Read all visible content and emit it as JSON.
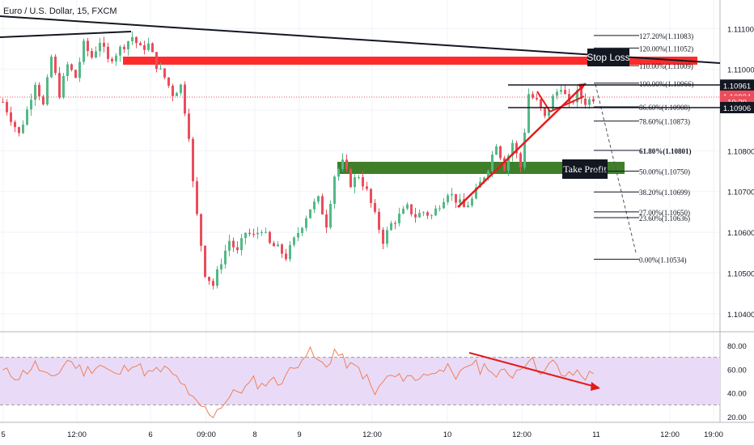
{
  "header": {
    "symbol_title": "Euro / U.S. Dollar, 15, FXCM"
  },
  "colors": {
    "up": "#53b987",
    "down": "#eb4d5c",
    "rsi_line": "#f07f5a",
    "rsi_band": "#e9dbf7",
    "stop_zone": "#ff2b2b",
    "profit_zone": "#3f7f2a",
    "trend_red": "#e31b1b",
    "black": "#131722"
  },
  "price_axis": {
    "ticks": [
      "1.11100",
      "1.11000",
      "1.10900",
      "1.10800",
      "1.10700",
      "1.10600",
      "1.10500",
      "1.10400"
    ],
    "tick_values": [
      1.111,
      1.11,
      1.109,
      1.108,
      1.107,
      1.106,
      1.105,
      1.104
    ],
    "badges": [
      {
        "text": "1.10961",
        "value": 1.10961,
        "bg": "#131722",
        "fg": "#ffffff"
      },
      {
        "text": "1.10934",
        "value": 1.10934,
        "bg": "#eb4d5c",
        "fg": "#ffffff"
      },
      {
        "text": "10:20",
        "value": 1.10921,
        "bg": "#eb4d5c",
        "fg": "#ffffff"
      },
      {
        "text": "1.10906",
        "value": 1.10906,
        "bg": "#131722",
        "fg": "#ffffff"
      }
    ]
  },
  "rsi_axis": {
    "ticks": [
      "80.00",
      "60.00",
      "40.00",
      "20.00"
    ],
    "tick_values": [
      80,
      60,
      40,
      20
    ],
    "band_upper": 70,
    "band_lower": 30
  },
  "time_axis": {
    "labels": [
      "5",
      "12:00",
      "6",
      "09:00",
      "8",
      "9",
      "12:00",
      "10",
      "12:00",
      "11",
      "12:00",
      "19:00"
    ]
  },
  "fib_levels": [
    {
      "text": "127.20%(1.11083)",
      "value": 1.11083,
      "bold": false
    },
    {
      "text": "120.00%(1.11052)",
      "value": 1.11052,
      "bold": false
    },
    {
      "text": "110.00%(1.11009)",
      "value": 1.11009,
      "bold": false
    },
    {
      "text": "100.00%(1.10966)",
      "value": 1.10966,
      "bold": false
    },
    {
      "text": "86.60%(1.10908)",
      "value": 1.10908,
      "bold": false
    },
    {
      "text": "78.60%(1.10873)",
      "value": 1.10873,
      "bold": false
    },
    {
      "text": "61.80%(1.10801)",
      "value": 1.10801,
      "bold": true
    },
    {
      "text": "50.00%(1.10750)",
      "value": 1.1075,
      "bold": false
    },
    {
      "text": "38.20%(1.10699)",
      "value": 1.10699,
      "bold": false
    },
    {
      "text": "27.00%(1.10650)",
      "value": 1.1065,
      "bold": false
    },
    {
      "text": "23.60%(1.10636)",
      "value": 1.10636,
      "bold": false
    },
    {
      "text": "0.00%(1.10534)",
      "value": 1.10534,
      "bold": false
    }
  ],
  "labels": {
    "stop_loss": "Stop Loss",
    "take_profit": "Take Profit"
  },
  "chart_data": {
    "type": "candlestick",
    "title": "Euro / U.S. Dollar, 15, FXCM",
    "xlabel": "",
    "ylabel": "",
    "ylim": [
      1.1036,
      1.1117
    ],
    "price_path": [
      [
        0,
        1.1092
      ],
      [
        2,
        1.1088
      ],
      [
        4,
        1.1084
      ],
      [
        6,
        1.109
      ],
      [
        8,
        1.1097
      ],
      [
        10,
        1.1091
      ],
      [
        12,
        1.1103
      ],
      [
        14,
        1.1094
      ],
      [
        16,
        1.1101
      ],
      [
        18,
        1.1098
      ],
      [
        20,
        1.1106
      ],
      [
        22,
        1.1103
      ],
      [
        24,
        1.1107
      ],
      [
        26,
        1.1102
      ],
      [
        28,
        1.1104
      ],
      [
        30,
        1.1106
      ],
      [
        32,
        1.1108
      ],
      [
        34,
        1.1105
      ],
      [
        36,
        1.1106
      ],
      [
        38,
        1.1101
      ],
      [
        40,
        1.1098
      ],
      [
        42,
        1.1094
      ],
      [
        44,
        1.1096
      ],
      [
        46,
        1.1084
      ],
      [
        47,
        1.1072
      ],
      [
        48,
        1.1064
      ],
      [
        50,
        1.105
      ],
      [
        52,
        1.1047
      ],
      [
        54,
        1.1053
      ],
      [
        56,
        1.1058
      ],
      [
        58,
        1.1055
      ],
      [
        60,
        1.106
      ],
      [
        62,
        1.1059
      ],
      [
        64,
        1.1061
      ],
      [
        66,
        1.1057
      ],
      [
        68,
        1.1056
      ],
      [
        70,
        1.1054
      ],
      [
        72,
        1.1058
      ],
      [
        74,
        1.1062
      ],
      [
        76,
        1.1066
      ],
      [
        78,
        1.1068
      ],
      [
        80,
        1.1062
      ],
      [
        82,
        1.1074
      ],
      [
        84,
        1.1077
      ],
      [
        86,
        1.1072
      ],
      [
        88,
        1.1074
      ],
      [
        90,
        1.107
      ],
      [
        92,
        1.1064
      ],
      [
        94,
        1.1058
      ],
      [
        96,
        1.1062
      ],
      [
        98,
        1.1064
      ],
      [
        100,
        1.1066
      ],
      [
        102,
        1.1064
      ],
      [
        104,
        1.1065
      ],
      [
        106,
        1.1064
      ],
      [
        108,
        1.1067
      ],
      [
        110,
        1.107
      ],
      [
        112,
        1.1068
      ],
      [
        114,
        1.1066
      ],
      [
        116,
        1.1068
      ],
      [
        118,
        1.1072
      ],
      [
        120,
        1.1076
      ],
      [
        122,
        1.1082
      ],
      [
        124,
        1.1076
      ],
      [
        126,
        1.1082
      ],
      [
        128,
        1.1076
      ],
      [
        130,
        1.1094
      ],
      [
        132,
        1.1092
      ],
      [
        134,
        1.1088
      ],
      [
        136,
        1.1093
      ],
      [
        138,
        1.1096
      ],
      [
        140,
        1.1091
      ],
      [
        142,
        1.1094
      ],
      [
        144,
        1.1092
      ],
      [
        146,
        1.1093
      ]
    ],
    "rsi_path": [
      [
        0,
        58
      ],
      [
        4,
        54
      ],
      [
        8,
        64
      ],
      [
        12,
        50
      ],
      [
        16,
        68
      ],
      [
        20,
        58
      ],
      [
        24,
        64
      ],
      [
        28,
        54
      ],
      [
        32,
        66
      ],
      [
        36,
        56
      ],
      [
        40,
        60
      ],
      [
        44,
        50
      ],
      [
        46,
        36
      ],
      [
        48,
        32
      ],
      [
        50,
        26
      ],
      [
        52,
        22
      ],
      [
        54,
        30
      ],
      [
        56,
        36
      ],
      [
        58,
        42
      ],
      [
        60,
        44
      ],
      [
        62,
        50
      ],
      [
        64,
        46
      ],
      [
        66,
        52
      ],
      [
        68,
        48
      ],
      [
        70,
        56
      ],
      [
        72,
        60
      ],
      [
        74,
        72
      ],
      [
        76,
        74
      ],
      [
        78,
        66
      ],
      [
        80,
        62
      ],
      [
        82,
        76
      ],
      [
        84,
        68
      ],
      [
        86,
        62
      ],
      [
        88,
        60
      ],
      [
        90,
        52
      ],
      [
        92,
        38
      ],
      [
        94,
        50
      ],
      [
        96,
        54
      ],
      [
        98,
        52
      ],
      [
        100,
        56
      ],
      [
        102,
        50
      ],
      [
        104,
        58
      ],
      [
        106,
        54
      ],
      [
        108,
        64
      ],
      [
        110,
        60
      ],
      [
        112,
        48
      ],
      [
        114,
        62
      ],
      [
        116,
        66
      ],
      [
        118,
        60
      ],
      [
        120,
        64
      ],
      [
        122,
        52
      ],
      [
        124,
        58
      ],
      [
        126,
        56
      ],
      [
        128,
        62
      ],
      [
        130,
        70
      ],
      [
        132,
        62
      ],
      [
        134,
        58
      ],
      [
        136,
        66
      ],
      [
        138,
        56
      ],
      [
        140,
        54
      ],
      [
        142,
        58
      ],
      [
        144,
        54
      ],
      [
        146,
        56
      ]
    ]
  }
}
